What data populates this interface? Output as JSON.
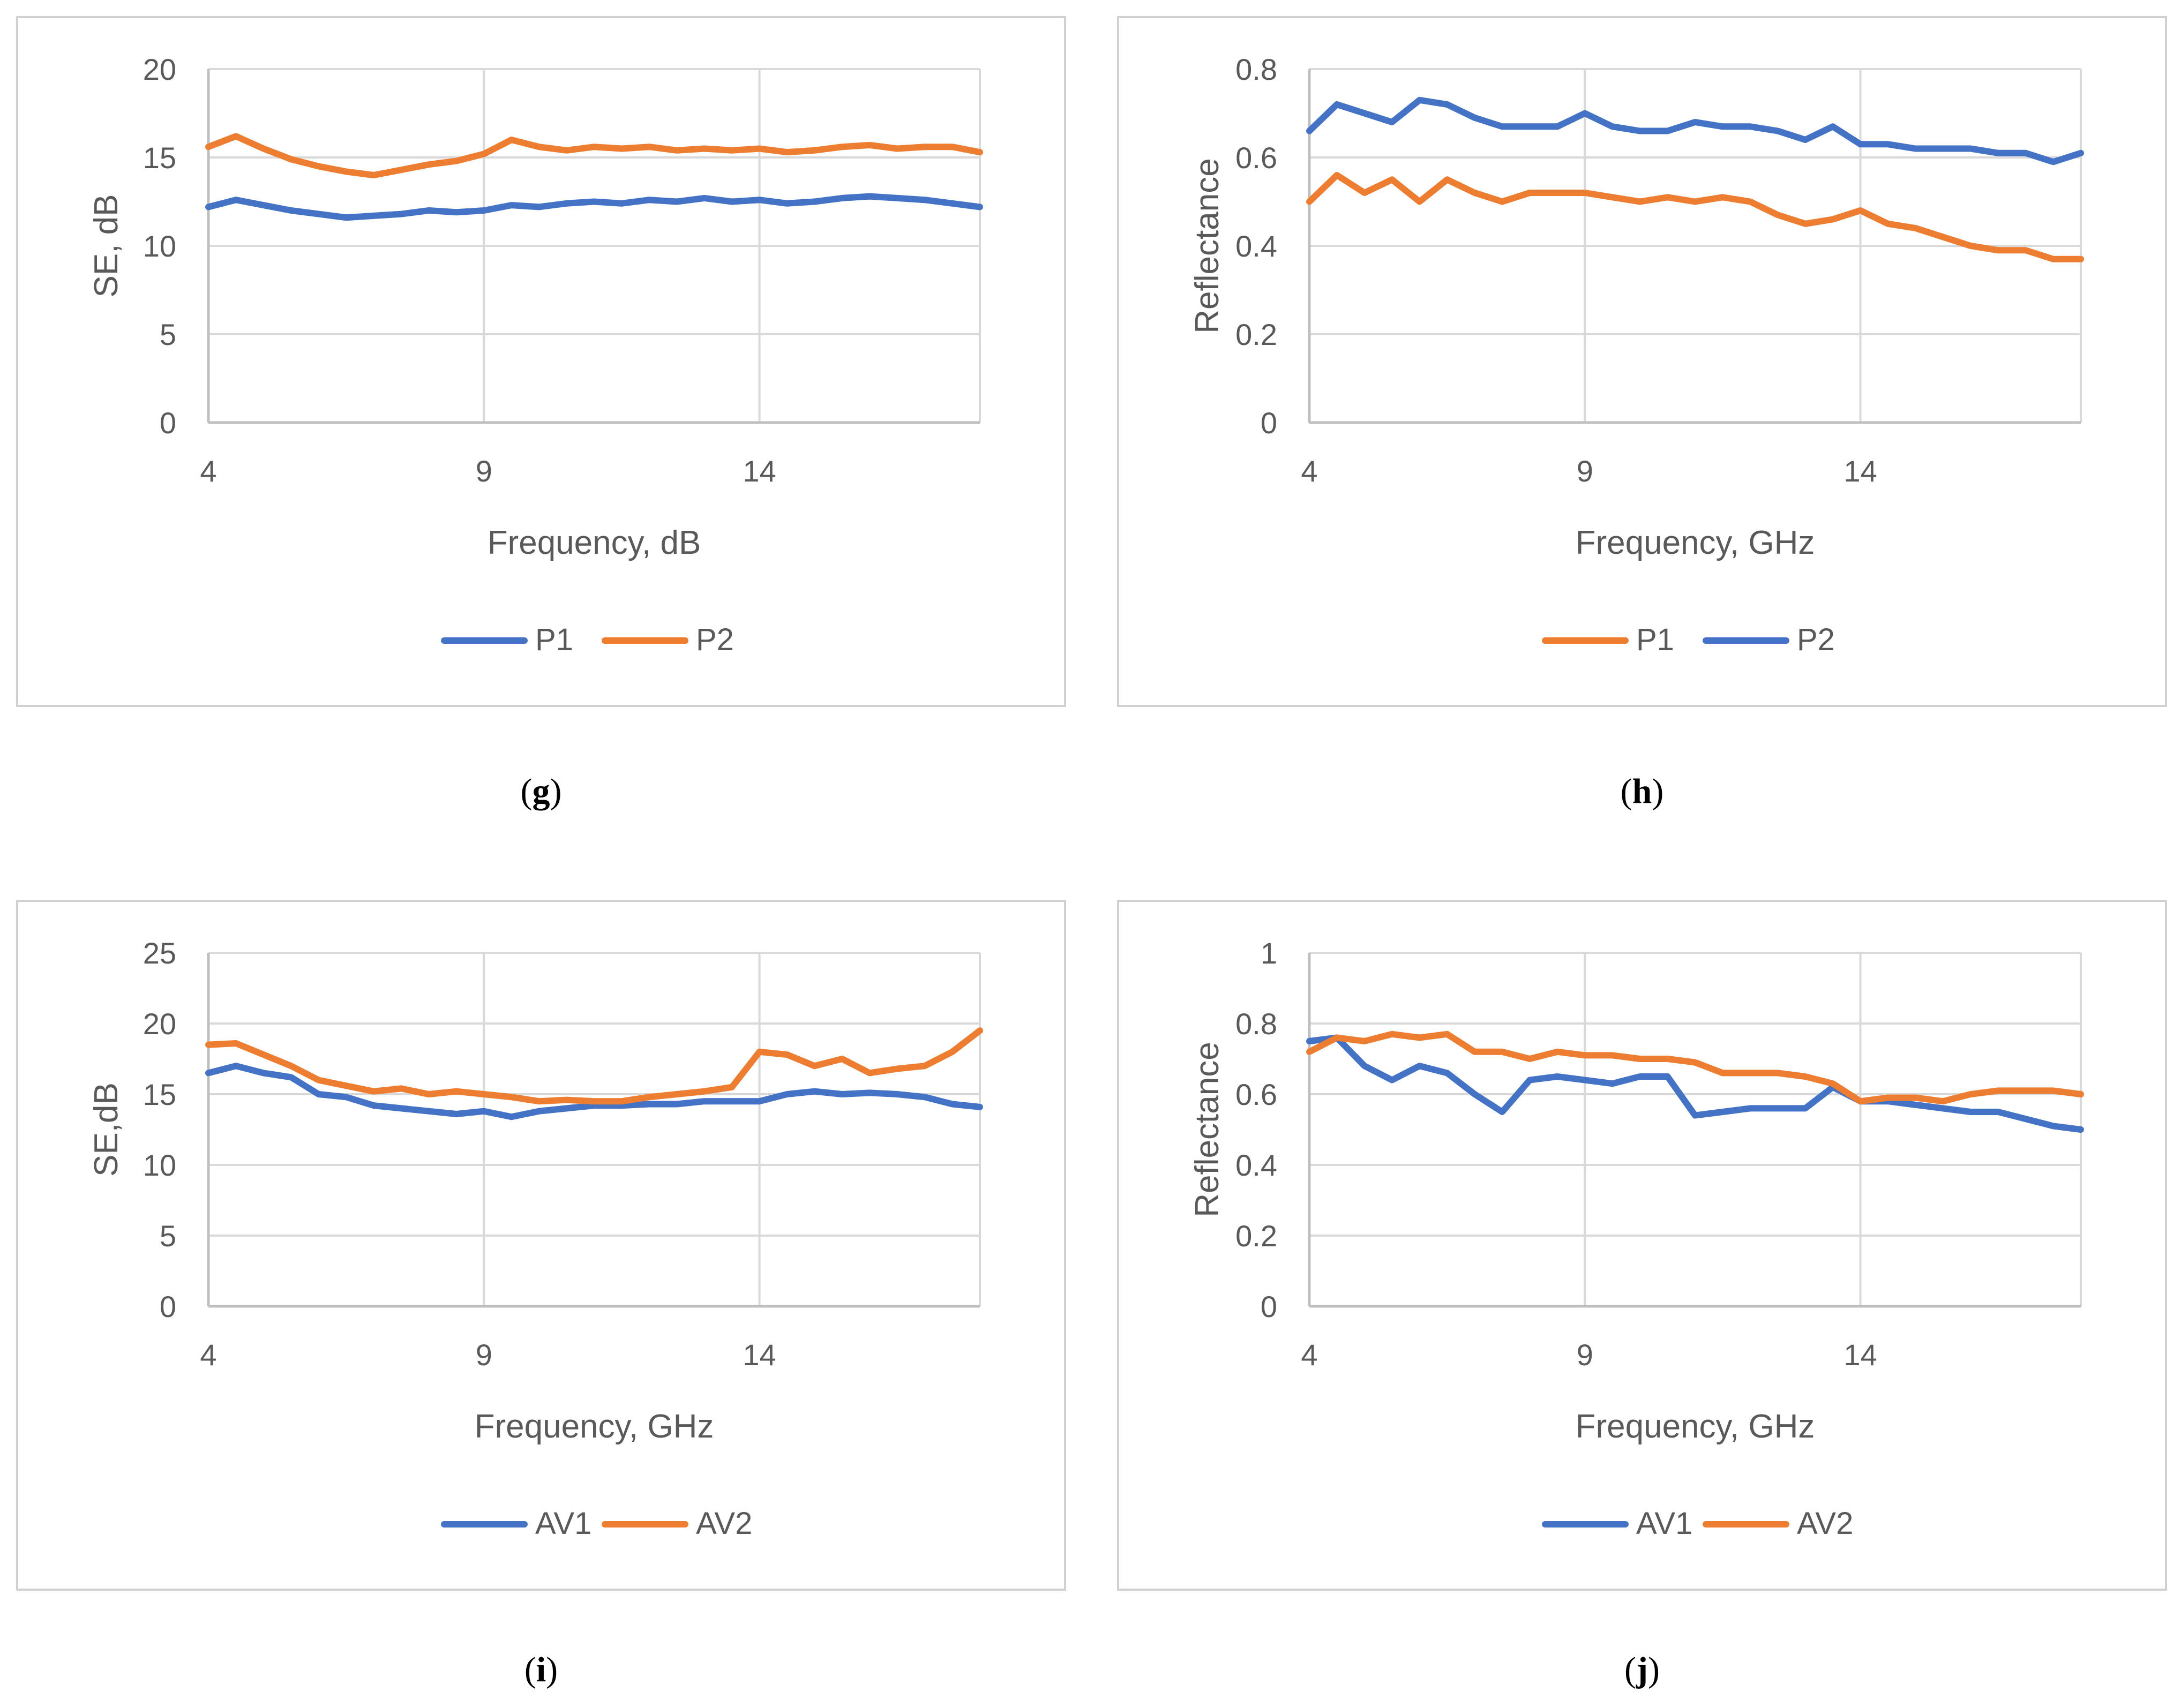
{
  "colors": {
    "blue": "#4472c4",
    "orange": "#ed7d31",
    "grid": "#d9d9d9",
    "text": "#595959"
  },
  "chart_data": [
    {
      "id": "g",
      "type": "line",
      "caption": "g",
      "xlabel": "Frequency, dB",
      "ylabel": "SE, dB",
      "xlim": [
        4,
        18
      ],
      "ylim": [
        0,
        20
      ],
      "xticks": [
        4,
        9,
        14
      ],
      "yticks": [
        0,
        5,
        10,
        15,
        20
      ],
      "legend": [
        {
          "name": "P1",
          "color": "#4472c4"
        },
        {
          "name": "P2",
          "color": "#ed7d31"
        }
      ],
      "series": [
        {
          "name": "P1",
          "color": "#4472c4",
          "x": [
            4,
            4.5,
            5,
            5.5,
            6,
            6.5,
            7,
            7.5,
            8,
            8.5,
            9,
            9.5,
            10,
            10.5,
            11,
            11.5,
            12,
            12.5,
            13,
            13.5,
            14,
            14.5,
            15,
            15.5,
            16,
            16.5,
            17,
            17.5,
            18
          ],
          "y": [
            12.2,
            12.6,
            12.3,
            12.0,
            11.8,
            11.6,
            11.7,
            11.8,
            12.0,
            11.9,
            12.0,
            12.3,
            12.2,
            12.4,
            12.5,
            12.4,
            12.6,
            12.5,
            12.7,
            12.5,
            12.6,
            12.4,
            12.5,
            12.7,
            12.8,
            12.7,
            12.6,
            12.4,
            12.2
          ]
        },
        {
          "name": "P2",
          "color": "#ed7d31",
          "x": [
            4,
            4.5,
            5,
            5.5,
            6,
            6.5,
            7,
            7.5,
            8,
            8.5,
            9,
            9.5,
            10,
            10.5,
            11,
            11.5,
            12,
            12.5,
            13,
            13.5,
            14,
            14.5,
            15,
            15.5,
            16,
            16.5,
            17,
            17.5,
            18
          ],
          "y": [
            15.6,
            16.2,
            15.5,
            14.9,
            14.5,
            14.2,
            14.0,
            14.3,
            14.6,
            14.8,
            15.2,
            16.0,
            15.6,
            15.4,
            15.6,
            15.5,
            15.6,
            15.4,
            15.5,
            15.4,
            15.5,
            15.3,
            15.4,
            15.6,
            15.7,
            15.5,
            15.6,
            15.6,
            15.3
          ]
        }
      ]
    },
    {
      "id": "h",
      "type": "line",
      "caption": "h",
      "xlabel": "Frequency, GHz",
      "ylabel": "Reflectance",
      "xlim": [
        4,
        18
      ],
      "ylim": [
        0,
        0.8
      ],
      "xticks": [
        4,
        9,
        14
      ],
      "yticks": [
        0,
        0.2,
        0.4,
        0.6,
        0.8
      ],
      "legend": [
        {
          "name": "P1",
          "color": "#ed7d31"
        },
        {
          "name": "P2",
          "color": "#4472c4"
        }
      ],
      "series": [
        {
          "name": "P1",
          "color": "#ed7d31",
          "x": [
            4,
            4.5,
            5,
            5.5,
            6,
            6.5,
            7,
            7.5,
            8,
            8.5,
            9,
            9.5,
            10,
            10.5,
            11,
            11.5,
            12,
            12.5,
            13,
            13.5,
            14,
            14.5,
            15,
            15.5,
            16,
            16.5,
            17,
            17.5,
            18
          ],
          "y": [
            0.5,
            0.56,
            0.52,
            0.55,
            0.5,
            0.55,
            0.52,
            0.5,
            0.52,
            0.52,
            0.52,
            0.51,
            0.5,
            0.51,
            0.5,
            0.51,
            0.5,
            0.47,
            0.45,
            0.46,
            0.48,
            0.45,
            0.44,
            0.42,
            0.4,
            0.39,
            0.39,
            0.37,
            0.37
          ]
        },
        {
          "name": "P2",
          "color": "#4472c4",
          "x": [
            4,
            4.5,
            5,
            5.5,
            6,
            6.5,
            7,
            7.5,
            8,
            8.5,
            9,
            9.5,
            10,
            10.5,
            11,
            11.5,
            12,
            12.5,
            13,
            13.5,
            14,
            14.5,
            15,
            15.5,
            16,
            16.5,
            17,
            17.5,
            18
          ],
          "y": [
            0.66,
            0.72,
            0.7,
            0.68,
            0.73,
            0.72,
            0.69,
            0.67,
            0.67,
            0.67,
            0.7,
            0.67,
            0.66,
            0.66,
            0.68,
            0.67,
            0.67,
            0.66,
            0.64,
            0.67,
            0.63,
            0.63,
            0.62,
            0.62,
            0.62,
            0.61,
            0.61,
            0.59,
            0.61
          ]
        }
      ]
    },
    {
      "id": "i",
      "type": "line",
      "caption": "i",
      "xlabel": "Frequency, GHz",
      "ylabel": "SE,dB",
      "xlim": [
        4,
        18
      ],
      "ylim": [
        0,
        25
      ],
      "xticks": [
        4,
        9,
        14
      ],
      "yticks": [
        0,
        5,
        10,
        15,
        20,
        25
      ],
      "legend": [
        {
          "name": "AV1",
          "color": "#4472c4"
        },
        {
          "name": "AV2",
          "color": "#ed7d31"
        }
      ],
      "series": [
        {
          "name": "AV1",
          "color": "#4472c4",
          "x": [
            4,
            4.5,
            5,
            5.5,
            6,
            6.5,
            7,
            7.5,
            8,
            8.5,
            9,
            9.5,
            10,
            10.5,
            11,
            11.5,
            12,
            12.5,
            13,
            13.5,
            14,
            14.5,
            15,
            15.5,
            16,
            16.5,
            17,
            17.5,
            18
          ],
          "y": [
            16.5,
            17.0,
            16.5,
            16.2,
            15.0,
            14.8,
            14.2,
            14.0,
            13.8,
            13.6,
            13.8,
            13.4,
            13.8,
            14.0,
            14.2,
            14.2,
            14.3,
            14.3,
            14.5,
            14.5,
            14.5,
            15.0,
            15.2,
            15.0,
            15.1,
            15.0,
            14.8,
            14.3,
            14.1
          ]
        },
        {
          "name": "AV2",
          "color": "#ed7d31",
          "x": [
            4,
            4.5,
            5,
            5.5,
            6,
            6.5,
            7,
            7.5,
            8,
            8.5,
            9,
            9.5,
            10,
            10.5,
            11,
            11.5,
            12,
            12.5,
            13,
            13.5,
            14,
            14.5,
            15,
            15.5,
            16,
            16.5,
            17,
            17.5,
            18
          ],
          "y": [
            18.5,
            18.6,
            17.8,
            17.0,
            16.0,
            15.6,
            15.2,
            15.4,
            15.0,
            15.2,
            15.0,
            14.8,
            14.5,
            14.6,
            14.5,
            14.5,
            14.8,
            15.0,
            15.2,
            15.5,
            18.0,
            17.8,
            17.0,
            17.5,
            16.5,
            16.8,
            17.0,
            18.0,
            19.5
          ]
        }
      ]
    },
    {
      "id": "j",
      "type": "line",
      "caption": "j",
      "xlabel": "Frequency, GHz",
      "ylabel": "Reflectance",
      "xlim": [
        4,
        18
      ],
      "ylim": [
        0,
        1
      ],
      "xticks": [
        4,
        9,
        14
      ],
      "yticks": [
        0,
        0.2,
        0.4,
        0.6,
        0.8,
        1
      ],
      "legend": [
        {
          "name": "AV1",
          "color": "#4472c4"
        },
        {
          "name": "AV2",
          "color": "#ed7d31"
        }
      ],
      "series": [
        {
          "name": "AV1",
          "color": "#4472c4",
          "x": [
            4,
            4.5,
            5,
            5.5,
            6,
            6.5,
            7,
            7.5,
            8,
            8.5,
            9,
            9.5,
            10,
            10.5,
            11,
            11.5,
            12,
            12.5,
            13,
            13.5,
            14,
            14.5,
            15,
            15.5,
            16,
            16.5,
            17,
            17.5,
            18
          ],
          "y": [
            0.75,
            0.76,
            0.68,
            0.64,
            0.68,
            0.66,
            0.6,
            0.55,
            0.64,
            0.65,
            0.64,
            0.63,
            0.65,
            0.65,
            0.54,
            0.55,
            0.56,
            0.56,
            0.56,
            0.62,
            0.58,
            0.58,
            0.57,
            0.56,
            0.55,
            0.55,
            0.53,
            0.51,
            0.5
          ]
        },
        {
          "name": "AV2",
          "color": "#ed7d31",
          "x": [
            4,
            4.5,
            5,
            5.5,
            6,
            6.5,
            7,
            7.5,
            8,
            8.5,
            9,
            9.5,
            10,
            10.5,
            11,
            11.5,
            12,
            12.5,
            13,
            13.5,
            14,
            14.5,
            15,
            15.5,
            16,
            16.5,
            17,
            17.5,
            18
          ],
          "y": [
            0.72,
            0.76,
            0.75,
            0.77,
            0.76,
            0.77,
            0.72,
            0.72,
            0.7,
            0.72,
            0.71,
            0.71,
            0.7,
            0.7,
            0.69,
            0.66,
            0.66,
            0.66,
            0.65,
            0.63,
            0.58,
            0.59,
            0.59,
            0.58,
            0.6,
            0.61,
            0.61,
            0.61,
            0.6
          ]
        }
      ]
    }
  ]
}
